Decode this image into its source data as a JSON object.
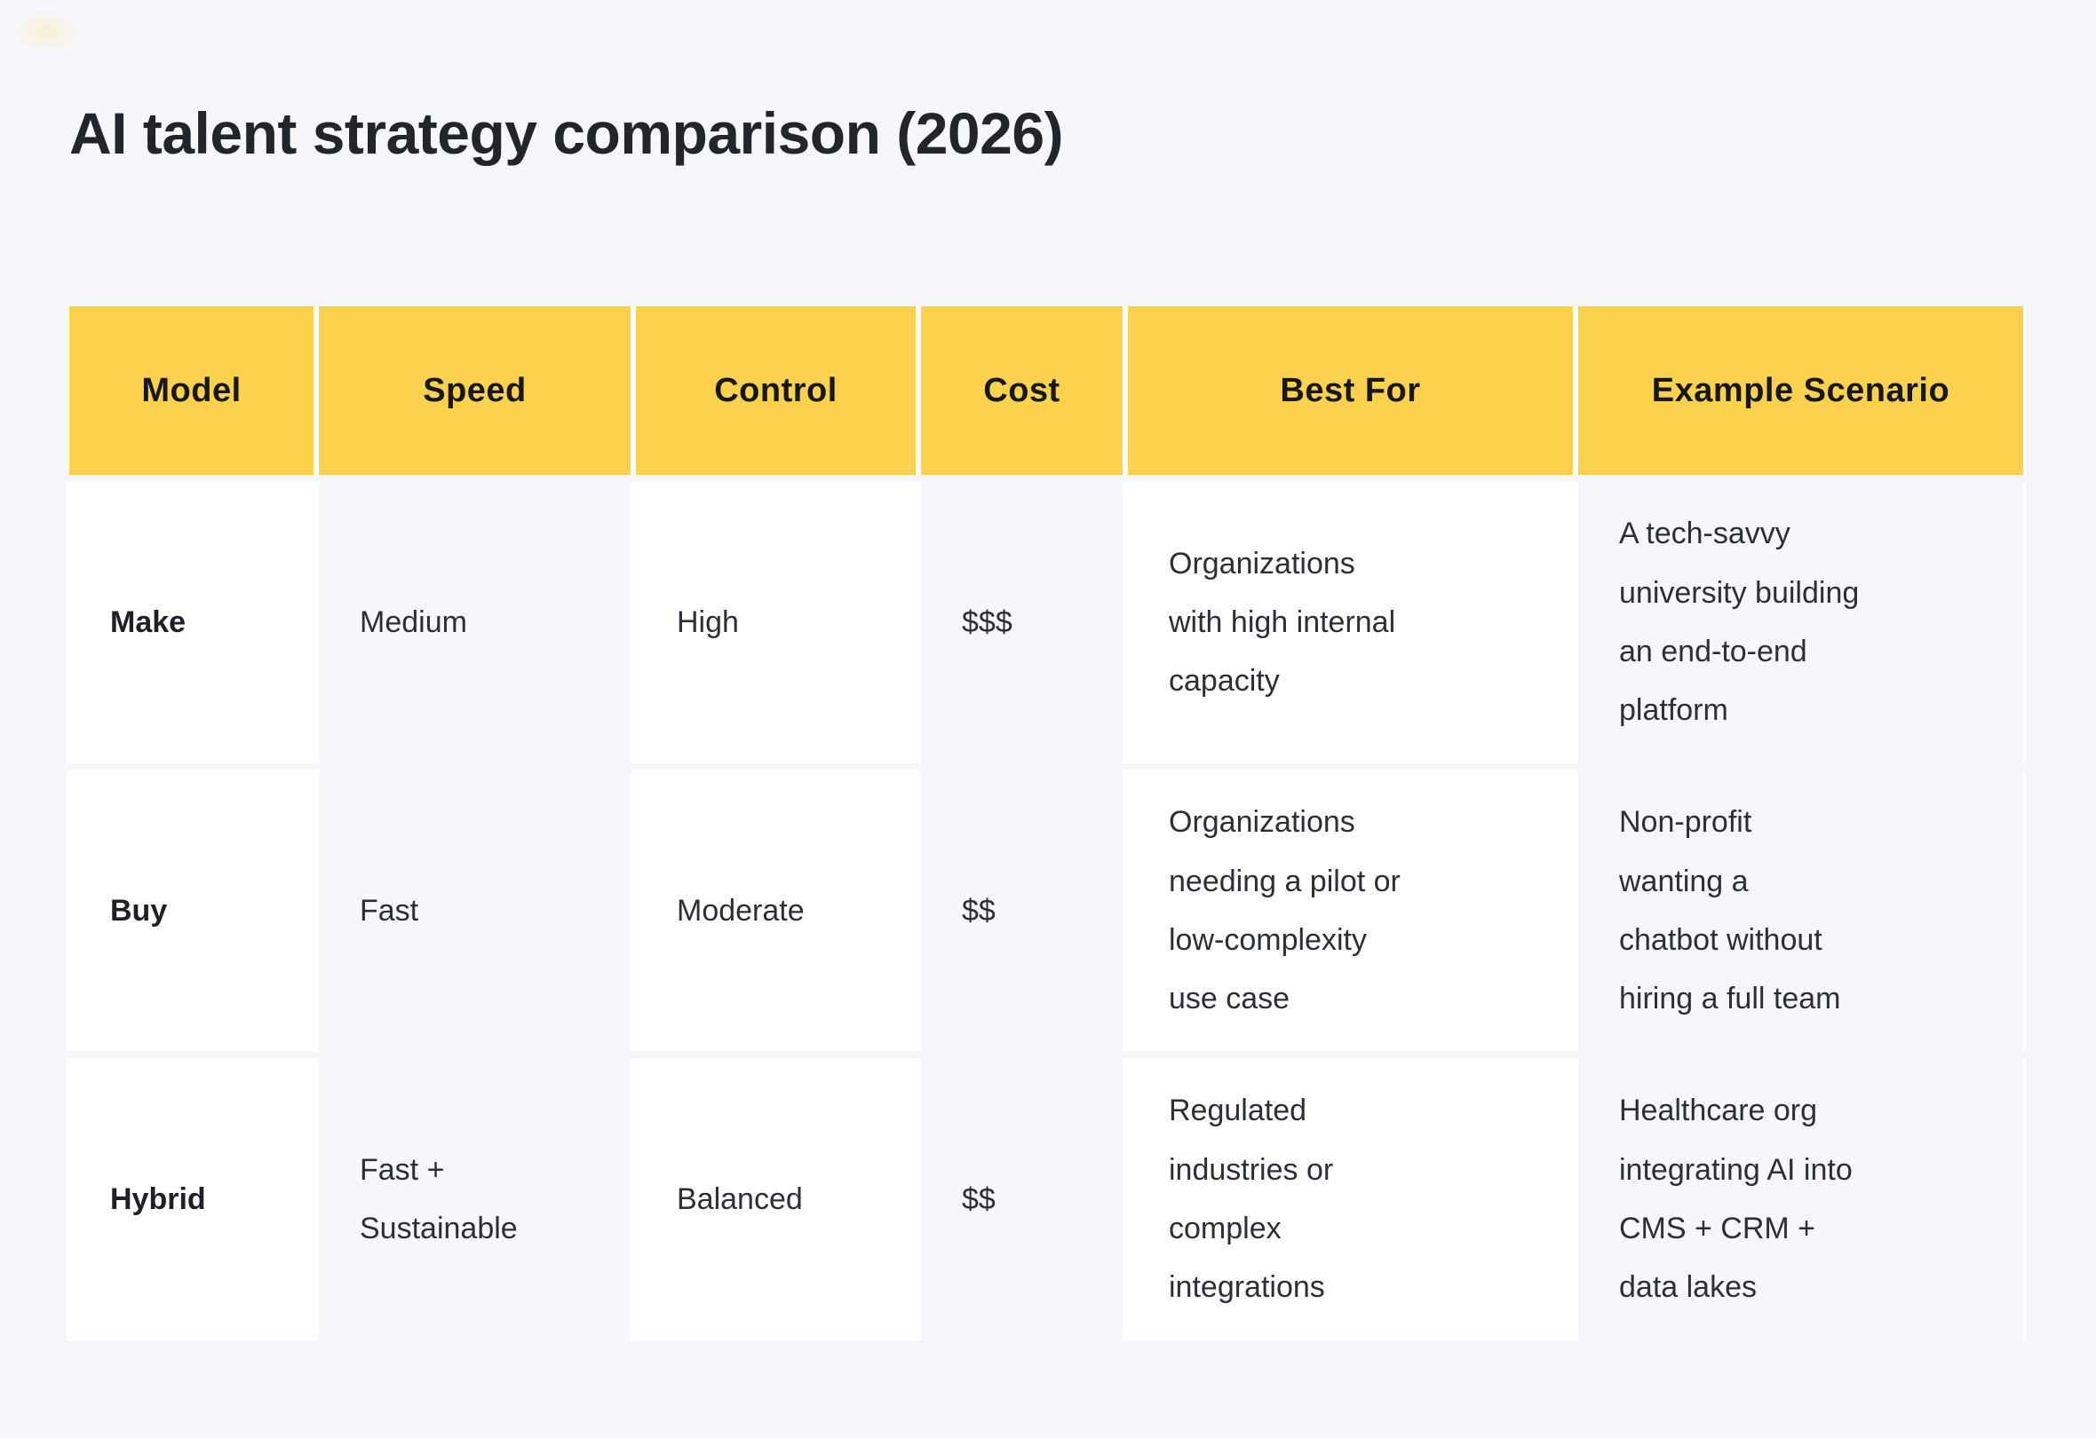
{
  "title": "AI talent strategy comparison (2026)",
  "theme": {
    "page_bg": "#F7F7FB",
    "header_bg": "#FBD14D",
    "white_cell_bg": "#FFFFFF",
    "tint_cell_bg": "#F7F7FB",
    "title_color": "#23252C",
    "body_text_color": "#2D2F36"
  },
  "chart_data": {
    "type": "table",
    "title": "AI talent strategy comparison (2026)",
    "columns": [
      "Model",
      "Speed",
      "Control",
      "Cost",
      "Best For",
      "Example Scenario"
    ],
    "rows": [
      {
        "model": "Make",
        "speed": "Medium",
        "control": "High",
        "cost": "$$$",
        "best_for": "Organizations\nwith high internal\ncapacity",
        "example_scenario": "A tech-savvy\nuniversity building\nan end-to-end\nplatform"
      },
      {
        "model": "Buy",
        "speed": "Fast",
        "control": "Moderate",
        "cost": "$$",
        "best_for": "Organizations\nneeding a pilot or\nlow-complexity\nuse case",
        "example_scenario": "Non-profit\nwanting a\nchatbot without\nhiring a full team"
      },
      {
        "model": "Hybrid",
        "speed": "Fast +\nSustainable",
        "control": "Balanced",
        "cost": "$$",
        "best_for": "Regulated\nindustries or\ncomplex\nintegrations",
        "example_scenario": "Healthcare org\nintegrating AI into\nCMS + CRM +\ndata lakes"
      }
    ]
  }
}
